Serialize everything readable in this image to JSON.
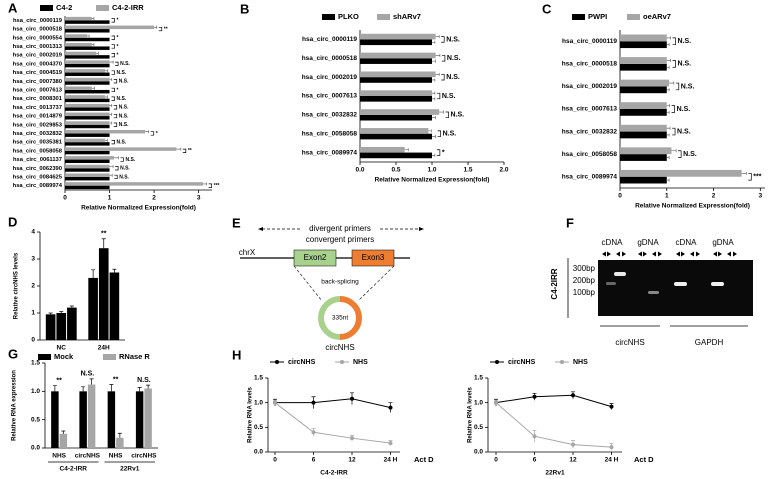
{
  "chart_data": [
    {
      "type": "hbar",
      "panel": "A",
      "categories": [
        "hsa_circ_0000119",
        "hsa_circ_0000518",
        "hsa_circ_0000554",
        "hsa_circ_0001313",
        "hsa_circ_0002019",
        "hsa_circ_0004370",
        "hsa_circ_0004519",
        "hsa_circ_0007380",
        "hsa_circ_0007613",
        "hsa_circ_0008301",
        "hsa_circ_0013737",
        "hsa_circ_0014879",
        "hsa_circ_0029853",
        "hsa_circ_0032832",
        "hsa_circ_0035381",
        "hsa_circ_0058058",
        "hsa_circ_0061137",
        "hsa_circ_0062390",
        "hsa_circ_0084625",
        "hsa_circ_0089974"
      ],
      "series": [
        {
          "name": "C4-2",
          "color": "#000000",
          "values": [
            1,
            1,
            1,
            1,
            1,
            1,
            1,
            1,
            1,
            1,
            1,
            1,
            1,
            1,
            1,
            1,
            1,
            1,
            1,
            1
          ]
        },
        {
          "name": "C4-2-IRR",
          "color": "#a6a6a6",
          "values": [
            0.6,
            2.0,
            0.5,
            0.6,
            0.7,
            1.0,
            0.9,
            1.0,
            0.6,
            0.9,
            1.0,
            1.0,
            1.0,
            1.8,
            0.9,
            2.5,
            1.1,
            1.0,
            1.0,
            3.1
          ],
          "errors": [
            0.05,
            0.06,
            0.04,
            0.05,
            0.05,
            0.08,
            0.06,
            0.05,
            0.06,
            0.05,
            0.05,
            0.05,
            0.05,
            0.08,
            0.05,
            0.1,
            0.1,
            0.08,
            0.06,
            0.08
          ]
        }
      ],
      "annotations": [
        "*",
        "**",
        "*",
        "*",
        "*",
        "N.S.",
        "N.S.",
        "N.S.",
        "*",
        "N.S.",
        "N.S.",
        "N.S.",
        "N.S.",
        "*",
        "N.S.",
        "**",
        "N.S.",
        "N.S.",
        "N.S.",
        "***"
      ],
      "xlim": [
        0,
        3.3
      ],
      "xticks": [
        0,
        1,
        2,
        3
      ],
      "xlabel": "Relative Normalized Expression(fold)"
    },
    {
      "type": "hbar",
      "panel": "B",
      "categories": [
        "hsa_circ_0000119",
        "hsa_circ_0000518",
        "hsa_circ_0002019",
        "hsa_circ_0007613",
        "hsa_circ_0032832",
        "hsa_circ_0058058",
        "hsa_circ_0089974"
      ],
      "series": [
        {
          "name": "PLKO",
          "color": "#000000",
          "values": [
            1,
            1,
            1,
            1,
            1,
            1,
            1
          ],
          "errors": [
            0.04,
            0.05,
            0.04,
            0.04,
            0.05,
            0.05,
            0.04
          ]
        },
        {
          "name": "shARv7",
          "color": "#a6a6a6",
          "values": [
            1.05,
            1.05,
            1.05,
            1.0,
            1.1,
            0.95,
            0.62
          ],
          "errors": [
            0.05,
            0.06,
            0.05,
            0.04,
            0.06,
            0.04,
            0.05
          ]
        }
      ],
      "annotations": [
        "N.S.",
        "N.S.",
        "N.S.",
        "N.S.",
        "N.S.",
        "N.S.",
        "*"
      ],
      "xlim": [
        0,
        2
      ],
      "xticks": [
        {
          "value": 0,
          "label": "0.0"
        },
        {
          "value": 0.5,
          "label": "0.5"
        },
        {
          "value": 1,
          "label": "1.0"
        },
        {
          "value": 1.5,
          "label": "1.5"
        },
        {
          "value": 2,
          "label": "2.0"
        }
      ],
      "xlabel": "Relative Normalized Expression(fold)"
    },
    {
      "type": "hbar",
      "panel": "C",
      "categories": [
        "hsa_circ_0000119",
        "hsa_circ_0000518",
        "hsa_circ_0002019",
        "hsa_circ_0007613",
        "hsa_circ_0032832",
        "hsa_circ_0058058",
        "hsa_circ_0089974"
      ],
      "series": [
        {
          "name": "PWPI",
          "color": "#000000",
          "values": [
            1,
            1,
            1,
            1,
            1,
            1,
            1
          ],
          "errors": [
            0.05,
            0.05,
            0.05,
            0.05,
            0.05,
            0.05,
            0.05
          ]
        },
        {
          "name": "oeARv7",
          "color": "#a6a6a6",
          "values": [
            1.0,
            1.0,
            1.05,
            1.0,
            1.0,
            1.1,
            2.6
          ],
          "errors": [
            0.08,
            0.08,
            0.1,
            0.06,
            0.07,
            0.1,
            0.1
          ]
        }
      ],
      "annotations": [
        "N.S.",
        "N.S.",
        "N.S.",
        "N.S.",
        "N.S.",
        "N.S.",
        "***"
      ],
      "xlim": [
        0,
        3.1
      ],
      "xticks": [
        0,
        1,
        2,
        3
      ],
      "xlabel": "Relative Normalized Expression(fold)"
    },
    {
      "type": "bar",
      "panel": "D",
      "categories": [
        "NC",
        "24H"
      ],
      "series": [
        {
          "color": "#000000",
          "values": [
            0.95,
            2.3
          ],
          "errors": [
            0.05,
            0.3
          ]
        },
        {
          "color": "#000000",
          "values": [
            1.0,
            3.4
          ],
          "errors": [
            0.05,
            0.35
          ]
        },
        {
          "color": "#000000",
          "values": [
            1.2,
            2.5
          ],
          "errors": [
            0.06,
            0.12
          ]
        }
      ],
      "annotations": [
        null,
        "**"
      ],
      "ylim": [
        0,
        4
      ],
      "yticks": [
        0,
        1,
        2,
        3,
        4
      ],
      "ylabel": "Relative circNHS levels"
    },
    {
      "type": "bar",
      "panel": "G",
      "categories": [
        "NHS",
        "circNHS",
        "NHS",
        "circNHS"
      ],
      "groups": [
        "C4-2-IRR",
        "22Rv1"
      ],
      "series": [
        {
          "name": "Mock",
          "color": "#000000",
          "values": [
            1.0,
            1.0,
            1.0,
            1.0
          ],
          "errors": [
            0.1,
            0.08,
            0.12,
            0.07
          ]
        },
        {
          "name": "RNase R",
          "color": "#a6a6a6",
          "values": [
            0.25,
            1.12,
            0.18,
            1.05
          ],
          "errors": [
            0.05,
            0.1,
            0.08,
            0.06
          ]
        }
      ],
      "annotations": [
        "**",
        "N.S.",
        "**",
        "N.S."
      ],
      "ylim": [
        0,
        1.5
      ],
      "yticks": [
        {
          "value": 0,
          "label": "0.0"
        },
        {
          "value": 0.5,
          "label": "0.5"
        },
        {
          "value": 1,
          "label": "1.0"
        },
        {
          "value": 1.5,
          "label": "1.5"
        }
      ],
      "ylabel": "Relative RNA expression"
    },
    {
      "type": "line",
      "panel": "H",
      "categories": [
        "0",
        "6",
        "12",
        "24 H"
      ],
      "xlabel": "Act D",
      "subtitle": "C4-2-IRR",
      "series": [
        {
          "name": "circNHS",
          "color": "#000000",
          "values": [
            1.0,
            1.0,
            1.08,
            0.9
          ],
          "errors": [
            0.07,
            0.12,
            0.12,
            0.1
          ]
        },
        {
          "name": "NHS",
          "color": "#a6a6a6",
          "values": [
            1.0,
            0.4,
            0.28,
            0.18
          ],
          "errors": [
            0.05,
            0.08,
            0.06,
            0.05
          ]
        }
      ],
      "ylim": [
        0,
        1.5
      ],
      "yticks": [
        {
          "value": 0,
          "label": "0.0"
        },
        {
          "value": 0.5,
          "label": "0.5"
        },
        {
          "value": 1,
          "label": "1.0"
        },
        {
          "value": 1.5,
          "label": "1.5"
        }
      ],
      "ylabel": "Relative RNA levels"
    },
    {
      "type": "line",
      "categories": [
        "0",
        "6",
        "12",
        "24 H"
      ],
      "xlabel": "Act D",
      "subtitle": "22Rv1",
      "series": [
        {
          "name": "circNHS",
          "color": "#000000",
          "values": [
            1.0,
            1.12,
            1.15,
            0.92
          ],
          "errors": [
            0.07,
            0.07,
            0.07,
            0.06
          ]
        },
        {
          "name": "NHS",
          "color": "#a6a6a6",
          "values": [
            1.0,
            0.32,
            0.15,
            0.1
          ],
          "errors": [
            0.05,
            0.12,
            0.08,
            0.07
          ]
        }
      ],
      "ylim": [
        0,
        1.5
      ],
      "yticks": [
        {
          "value": 0,
          "label": "0.0"
        },
        {
          "value": 0.5,
          "label": "0.5"
        },
        {
          "value": 1,
          "label": "1.0"
        },
        {
          "value": 1.5,
          "label": "1.5"
        }
      ],
      "ylabel": "Relative RNA levels"
    }
  ],
  "diagram": {
    "panel": "E",
    "primers": [
      "divergent primers",
      "convergent primers"
    ],
    "chromosome": "chrX",
    "exons": [
      "Exon2",
      "Exon3"
    ],
    "process": "back-splicing",
    "length": "335nt",
    "product": "circNHS"
  },
  "gel": {
    "panel": "F",
    "lanes": [
      "cDNA",
      "gDNA",
      "cDNA",
      "gDNA"
    ],
    "markers": [
      "300bp",
      "200bp",
      "100bp"
    ],
    "cell_line": "C4-2IRR",
    "genes": [
      "circNHS",
      "GAPDH"
    ]
  }
}
